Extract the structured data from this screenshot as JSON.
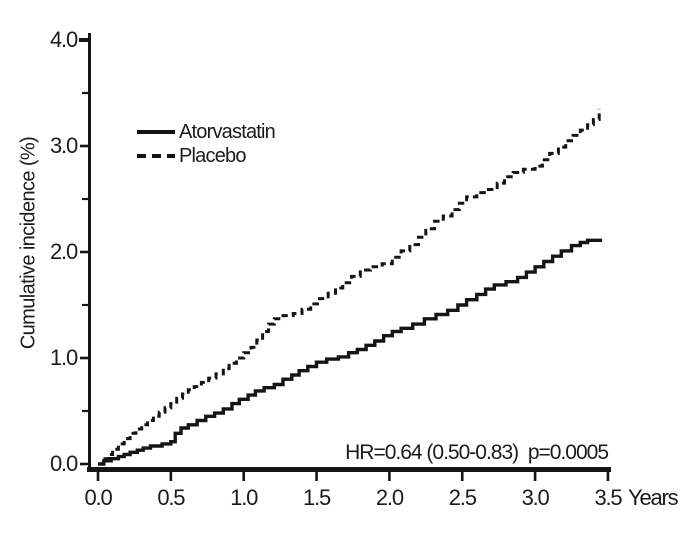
{
  "figure": {
    "background": "#ffffff",
    "ink_color": "#151515"
  },
  "chart_data": {
    "type": "line",
    "subtype": "kaplan-meier-step",
    "title": "",
    "xlabel": "Years",
    "ylabel": "Cumulative incidence (%)",
    "xlim": [
      0,
      3.5
    ],
    "ylim": [
      0,
      4.0
    ],
    "grid": false,
    "x_ticks": [
      0.0,
      0.5,
      1.0,
      1.5,
      2.0,
      2.5,
      3.0,
      3.5
    ],
    "x_tick_labels": [
      "0.0",
      "0.5",
      "1.0",
      "1.5",
      "2.0",
      "2.5",
      "3.0",
      "3.5"
    ],
    "y_major_ticks": [
      0.0,
      1.0,
      2.0,
      3.0,
      4.0
    ],
    "y_tick_labels": [
      "0.0",
      "1.0",
      "2.0",
      "3.0",
      "4.0"
    ],
    "y_minor_ticks": [
      0.5,
      1.5,
      2.5,
      3.5
    ],
    "annotation": "HR=0.64 (0.50-0.83)  p=0.0005",
    "legend": {
      "position": "upper-left-inside",
      "entries": [
        {
          "label": "Atorvastatin",
          "style": "solid"
        },
        {
          "label": "Placebo",
          "style": "dashed"
        }
      ]
    },
    "series": [
      {
        "name": "Atorvastatin",
        "style": "solid",
        "points": [
          [
            0.0,
            0.0
          ],
          [
            0.04,
            0.03
          ],
          [
            0.09,
            0.05
          ],
          [
            0.14,
            0.07
          ],
          [
            0.18,
            0.09
          ],
          [
            0.22,
            0.11
          ],
          [
            0.27,
            0.13
          ],
          [
            0.31,
            0.15
          ],
          [
            0.36,
            0.17
          ],
          [
            0.44,
            0.19
          ],
          [
            0.5,
            0.21
          ],
          [
            0.53,
            0.29
          ],
          [
            0.57,
            0.34
          ],
          [
            0.62,
            0.37
          ],
          [
            0.68,
            0.41
          ],
          [
            0.74,
            0.45
          ],
          [
            0.8,
            0.48
          ],
          [
            0.86,
            0.52
          ],
          [
            0.92,
            0.57
          ],
          [
            0.97,
            0.61
          ],
          [
            1.03,
            0.65
          ],
          [
            1.08,
            0.69
          ],
          [
            1.14,
            0.72
          ],
          [
            1.21,
            0.75
          ],
          [
            1.27,
            0.8
          ],
          [
            1.33,
            0.84
          ],
          [
            1.38,
            0.88
          ],
          [
            1.44,
            0.92
          ],
          [
            1.5,
            0.96
          ],
          [
            1.57,
            0.99
          ],
          [
            1.65,
            1.01
          ],
          [
            1.72,
            1.05
          ],
          [
            1.78,
            1.08
          ],
          [
            1.84,
            1.12
          ],
          [
            1.9,
            1.16
          ],
          [
            1.96,
            1.21
          ],
          [
            2.02,
            1.25
          ],
          [
            2.08,
            1.28
          ],
          [
            2.16,
            1.32
          ],
          [
            2.24,
            1.37
          ],
          [
            2.32,
            1.41
          ],
          [
            2.4,
            1.45
          ],
          [
            2.47,
            1.5
          ],
          [
            2.53,
            1.55
          ],
          [
            2.6,
            1.6
          ],
          [
            2.66,
            1.65
          ],
          [
            2.72,
            1.69
          ],
          [
            2.8,
            1.72
          ],
          [
            2.88,
            1.76
          ],
          [
            2.94,
            1.81
          ],
          [
            3.0,
            1.86
          ],
          [
            3.06,
            1.91
          ],
          [
            3.12,
            1.96
          ],
          [
            3.18,
            2.01
          ],
          [
            3.25,
            2.06
          ],
          [
            3.31,
            2.09
          ],
          [
            3.36,
            2.11
          ],
          [
            3.46,
            2.11
          ]
        ]
      },
      {
        "name": "Placebo",
        "style": "dashed",
        "points": [
          [
            0.0,
            0.0
          ],
          [
            0.03,
            0.05
          ],
          [
            0.07,
            0.09
          ],
          [
            0.1,
            0.14
          ],
          [
            0.14,
            0.19
          ],
          [
            0.18,
            0.24
          ],
          [
            0.22,
            0.29
          ],
          [
            0.26,
            0.33
          ],
          [
            0.3,
            0.37
          ],
          [
            0.34,
            0.41
          ],
          [
            0.38,
            0.45
          ],
          [
            0.42,
            0.49
          ],
          [
            0.46,
            0.53
          ],
          [
            0.5,
            0.57
          ],
          [
            0.54,
            0.62
          ],
          [
            0.58,
            0.66
          ],
          [
            0.62,
            0.7
          ],
          [
            0.66,
            0.73
          ],
          [
            0.71,
            0.77
          ],
          [
            0.76,
            0.81
          ],
          [
            0.81,
            0.85
          ],
          [
            0.86,
            0.9
          ],
          [
            0.9,
            0.95
          ],
          [
            0.95,
            1.0
          ],
          [
            1.0,
            1.05
          ],
          [
            1.05,
            1.1
          ],
          [
            1.09,
            1.17
          ],
          [
            1.13,
            1.25
          ],
          [
            1.17,
            1.32
          ],
          [
            1.21,
            1.37
          ],
          [
            1.27,
            1.4
          ],
          [
            1.34,
            1.42
          ],
          [
            1.4,
            1.46
          ],
          [
            1.46,
            1.51
          ],
          [
            1.52,
            1.56
          ],
          [
            1.58,
            1.61
          ],
          [
            1.63,
            1.66
          ],
          [
            1.68,
            1.71
          ],
          [
            1.74,
            1.77
          ],
          [
            1.8,
            1.83
          ],
          [
            1.87,
            1.86
          ],
          [
            1.95,
            1.89
          ],
          [
            2.02,
            1.95
          ],
          [
            2.08,
            2.01
          ],
          [
            2.14,
            2.07
          ],
          [
            2.2,
            2.14
          ],
          [
            2.25,
            2.22
          ],
          [
            2.31,
            2.29
          ],
          [
            2.37,
            2.34
          ],
          [
            2.43,
            2.4
          ],
          [
            2.48,
            2.46
          ],
          [
            2.53,
            2.52
          ],
          [
            2.6,
            2.56
          ],
          [
            2.68,
            2.59
          ],
          [
            2.74,
            2.65
          ],
          [
            2.79,
            2.71
          ],
          [
            2.85,
            2.75
          ],
          [
            2.92,
            2.78
          ],
          [
            3.0,
            2.81
          ],
          [
            3.05,
            2.87
          ],
          [
            3.1,
            2.93
          ],
          [
            3.16,
            2.99
          ],
          [
            3.21,
            3.05
          ],
          [
            3.26,
            3.1
          ],
          [
            3.31,
            3.15
          ],
          [
            3.36,
            3.2
          ],
          [
            3.4,
            3.25
          ],
          [
            3.44,
            3.35
          ]
        ]
      }
    ]
  }
}
